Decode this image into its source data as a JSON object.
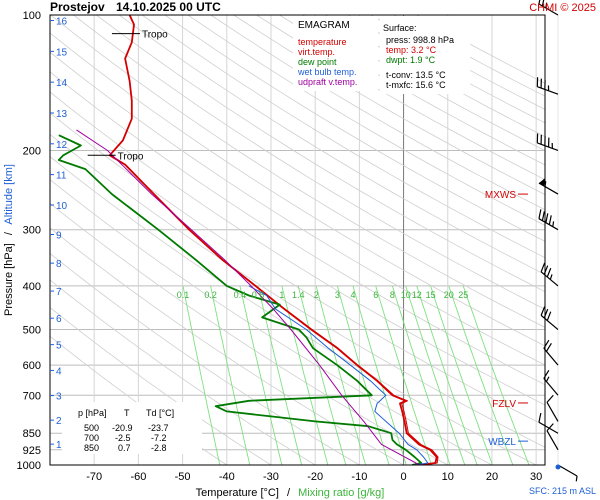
{
  "header": {
    "station": "Prostejov",
    "datetime": "14.10.2025 00 UTC",
    "copyright": "CHMI © 2025"
  },
  "legend": {
    "title": "EMAGRAM",
    "items": [
      {
        "label": "temperature",
        "color": "#d40000"
      },
      {
        "label": "virt.temp.",
        "color": "#d40000"
      },
      {
        "label": "dew point",
        "color": "#007a00"
      },
      {
        "label": "wet bulb temp.",
        "color": "#1f5fd6"
      },
      {
        "label": "udpraft v.temp.",
        "color": "#a000a0"
      }
    ]
  },
  "surface": {
    "title": "Surface:",
    "press": "press: 998.8 hPa",
    "temp": "temp: 3.2 °C",
    "dwpt": "dwpt: 1.9 °C",
    "tconv": "t-conv: 13.5 °C",
    "tmxfc": "t-mxfc: 15.6 °C"
  },
  "table": {
    "headers": [
      "p [hPa]",
      "T",
      "Td [°C]"
    ],
    "rows": [
      [
        "500",
        "-20.9",
        "-23.7"
      ],
      [
        "700",
        "-2.5",
        "-7.2"
      ],
      [
        "850",
        "0.7",
        "-2.8"
      ]
    ]
  },
  "axes": {
    "left_label": "Pressure [hPa]",
    "left_sep": "/",
    "left_label_alt": "Altitude [km]",
    "bottom_label": "Temperature [°C]",
    "bottom_sep": "/",
    "bottom_label_mix": "Mixing ratio [g/kg]"
  },
  "markers": {
    "tropo": "Tropo",
    "mxws": "MXWS",
    "fzlv": "FZLV",
    "wbzl": "WBZL",
    "sfc": "SFC: 215 m ASL"
  },
  "colors": {
    "temp": "#d40000",
    "dew": "#007a00",
    "wetbulb": "#1f5fd6",
    "parcel": "#a000a0",
    "mixing": "#7fe07f",
    "altitude": "#1f5fd6",
    "grid": "#c8c8c8",
    "barb": "#000000"
  },
  "chart_data": {
    "type": "line",
    "pressure_ticks": [
      100,
      200,
      300,
      400,
      500,
      600,
      700,
      850,
      925,
      1000
    ],
    "pressure_range": [
      100,
      1000
    ],
    "temperature_ticks": [
      -70,
      -60,
      -50,
      -40,
      -30,
      -20,
      -10,
      0,
      10,
      20,
      30
    ],
    "temperature_range": [
      -80,
      32
    ],
    "altitude_ticks_km": [
      1,
      2,
      3,
      4,
      5,
      6,
      7,
      8,
      9,
      10,
      11,
      12,
      13,
      14,
      15,
      16
    ],
    "mixing_ratio_ticks": [
      "0.1",
      "0.2",
      "0.4",
      "0.6",
      "1",
      "1.4",
      "2",
      "3",
      "4",
      "6",
      "8",
      "10",
      "12",
      "15",
      "20",
      "25"
    ],
    "mixing_ratio_values": [
      0.1,
      0.2,
      0.4,
      0.6,
      1,
      1.4,
      2,
      3,
      4,
      6,
      8,
      10,
      12,
      15,
      20,
      25
    ],
    "series": [
      {
        "name": "temperature",
        "points": [
          [
            1000,
            3.2
          ],
          [
            990,
            7.2
          ],
          [
            960,
            7.5
          ],
          [
            925,
            6.0
          ],
          [
            900,
            3.5
          ],
          [
            850,
            0.7
          ],
          [
            800,
            0.2
          ],
          [
            760,
            -0.3
          ],
          [
            730,
            -0.8
          ],
          [
            720,
            0.5
          ],
          [
            700,
            -2.5
          ],
          [
            650,
            -6.0
          ],
          [
            600,
            -10.5
          ],
          [
            550,
            -15.0
          ],
          [
            500,
            -20.9
          ],
          [
            450,
            -27.0
          ],
          [
            400,
            -33.5
          ],
          [
            350,
            -41.0
          ],
          [
            300,
            -48.5
          ],
          [
            250,
            -56.5
          ],
          [
            215,
            -63.0
          ],
          [
            205,
            -66.5
          ],
          [
            190,
            -63.5
          ],
          [
            170,
            -61.5
          ],
          [
            155,
            -61.5
          ],
          [
            140,
            -62.0
          ],
          [
            125,
            -63.0
          ],
          [
            115,
            -61.5
          ],
          [
            105,
            -61.0
          ],
          [
            100,
            -62.0
          ]
        ]
      },
      {
        "name": "virtual temperature",
        "points": [
          [
            1000,
            3.6
          ],
          [
            990,
            7.6
          ],
          [
            960,
            7.8
          ],
          [
            925,
            6.4
          ],
          [
            900,
            3.9
          ],
          [
            850,
            1.1
          ],
          [
            800,
            0.6
          ],
          [
            760,
            0.1
          ],
          [
            730,
            -0.4
          ],
          [
            720,
            0.9
          ],
          [
            700,
            -2.2
          ],
          [
            650,
            -5.8
          ],
          [
            600,
            -10.3
          ],
          [
            550,
            -14.8
          ],
          [
            500,
            -20.7
          ],
          [
            450,
            -26.9
          ],
          [
            400,
            -33.4
          ],
          [
            350,
            -40.9
          ],
          [
            300,
            -48.4
          ],
          [
            250,
            -56.4
          ],
          [
            215,
            -62.9
          ],
          [
            205,
            -66.4
          ]
        ]
      },
      {
        "name": "dew point",
        "points": [
          [
            1000,
            1.9
          ],
          [
            990,
            4.0
          ],
          [
            960,
            2.5
          ],
          [
            925,
            0.5
          ],
          [
            900,
            -1.5
          ],
          [
            880,
            -2.5
          ],
          [
            850,
            -2.8
          ],
          [
            820,
            -8.0
          ],
          [
            800,
            -20.0
          ],
          [
            780,
            -30.0
          ],
          [
            760,
            -40.0
          ],
          [
            740,
            -42.5
          ],
          [
            720,
            -35.0
          ],
          [
            700,
            -7.2
          ],
          [
            650,
            -10.5
          ],
          [
            600,
            -15.0
          ],
          [
            550,
            -20.5
          ],
          [
            520,
            -22.0
          ],
          [
            500,
            -23.7
          ],
          [
            470,
            -32.0
          ],
          [
            440,
            -28.0
          ],
          [
            420,
            -35.0
          ],
          [
            400,
            -40.0
          ],
          [
            350,
            -47.0
          ],
          [
            300,
            -55.5
          ],
          [
            250,
            -66.0
          ],
          [
            220,
            -72.0
          ],
          [
            210,
            -78.0
          ],
          [
            205,
            -77.0
          ],
          [
            195,
            -73.0
          ],
          [
            185,
            -78.0
          ]
        ]
      },
      {
        "name": "wet bulb temperature",
        "points": [
          [
            1000,
            2.5
          ],
          [
            990,
            5.5
          ],
          [
            960,
            4.5
          ],
          [
            925,
            3.0
          ],
          [
            900,
            1.0
          ],
          [
            850,
            -1.0
          ],
          [
            800,
            -4.0
          ],
          [
            760,
            -6.5
          ],
          [
            730,
            -6.0
          ],
          [
            700,
            -4.0
          ],
          [
            650,
            -7.5
          ],
          [
            600,
            -12.0
          ],
          [
            550,
            -17.0
          ],
          [
            500,
            -22.0
          ],
          [
            450,
            -29.0
          ],
          [
            420,
            -31.0
          ],
          [
            400,
            -35.0
          ]
        ]
      },
      {
        "name": "updraft virtual temperature",
        "points": [
          [
            1000,
            3.6
          ],
          [
            900,
            -5.0
          ],
          [
            800,
            -9.0
          ],
          [
            700,
            -14.0
          ],
          [
            600,
            -19.0
          ],
          [
            500,
            -25.5
          ],
          [
            450,
            -29.5
          ],
          [
            400,
            -34.5
          ],
          [
            350,
            -40.5
          ],
          [
            300,
            -48.0
          ],
          [
            250,
            -57.0
          ],
          [
            200,
            -67.0
          ],
          [
            180,
            -74.0
          ]
        ]
      }
    ],
    "altitude_markers": [
      {
        "label": "MXWS",
        "pressure": 250
      },
      {
        "label": "FZLV",
        "pressure": 728
      },
      {
        "label": "WBZL",
        "pressure": 885
      }
    ],
    "tropopause": [
      {
        "pressure": 110,
        "temp": -61.0
      },
      {
        "pressure": 205,
        "temp": -66.5
      }
    ],
    "wind_profile": [
      {
        "pressure": 1000,
        "dir": 120,
        "speed": 5
      },
      {
        "pressure": 925,
        "dir": 330,
        "speed": 10
      },
      {
        "pressure": 850,
        "dir": 300,
        "speed": 10
      },
      {
        "pressure": 800,
        "dir": 330,
        "speed": 10
      },
      {
        "pressure": 700,
        "dir": 320,
        "speed": 15
      },
      {
        "pressure": 600,
        "dir": 320,
        "speed": 20
      },
      {
        "pressure": 500,
        "dir": 310,
        "speed": 30
      },
      {
        "pressure": 400,
        "dir": 310,
        "speed": 35
      },
      {
        "pressure": 300,
        "dir": 300,
        "speed": 45
      },
      {
        "pressure": 250,
        "dir": 300,
        "speed": 55
      },
      {
        "pressure": 200,
        "dir": 290,
        "speed": 45
      },
      {
        "pressure": 150,
        "dir": 290,
        "speed": 35
      },
      {
        "pressure": 100,
        "dir": 300,
        "speed": 25
      }
    ]
  }
}
